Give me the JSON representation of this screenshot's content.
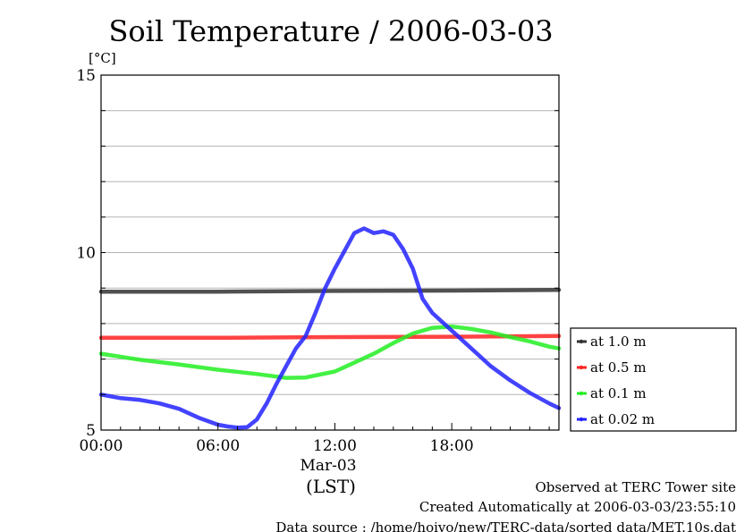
{
  "chart_data": {
    "type": "line",
    "title": "Soil Temperature / 2006-03-03",
    "ylabel": "[°C]",
    "xlabel": "(LST)",
    "x_date_label": "Mar-03",
    "ylim": [
      5,
      15
    ],
    "xlim": [
      0,
      23.5
    ],
    "yticks": [
      "15",
      "10",
      "5"
    ],
    "xticks": [
      {
        "x": 0,
        "label": "00:00"
      },
      {
        "x": 6,
        "label": "06:00"
      },
      {
        "x": 12,
        "label": "12:00"
      },
      {
        "x": 18,
        "label": "18:00"
      }
    ],
    "grid": true,
    "legend_position": "right",
    "series": [
      {
        "name": "at 1.0 m",
        "color": "#333333",
        "x": [
          0,
          6,
          12,
          18,
          23.5
        ],
        "y": [
          8.9,
          8.9,
          8.92,
          8.93,
          8.95
        ]
      },
      {
        "name": "at 0.5 m",
        "color": "#ff2222",
        "x": [
          0,
          6,
          12,
          18,
          23.5
        ],
        "y": [
          7.6,
          7.6,
          7.62,
          7.63,
          7.65
        ]
      },
      {
        "name": "at 0.1 m",
        "color": "#22ee22",
        "x": [
          0,
          2,
          4,
          6,
          8,
          9.5,
          10.5,
          12,
          13,
          14,
          15,
          16,
          17,
          18,
          19,
          20,
          21,
          22,
          23,
          23.5
        ],
        "y": [
          7.15,
          6.98,
          6.85,
          6.7,
          6.58,
          6.47,
          6.48,
          6.65,
          6.9,
          7.15,
          7.45,
          7.72,
          7.88,
          7.92,
          7.85,
          7.75,
          7.62,
          7.5,
          7.35,
          7.3
        ]
      },
      {
        "name": "at 0.02 m",
        "color": "#2222ff",
        "x": [
          0,
          1,
          2,
          3,
          4,
          5,
          6,
          6.5,
          7,
          7.5,
          8,
          8.5,
          9,
          9.5,
          10,
          10.5,
          11,
          11.5,
          12,
          12.5,
          13,
          13.5,
          14,
          14.5,
          15,
          15.5,
          16,
          16.5,
          17,
          17.5,
          18,
          19,
          20,
          21,
          22,
          23,
          23.5
        ],
        "y": [
          6.0,
          5.9,
          5.85,
          5.75,
          5.6,
          5.35,
          5.15,
          5.1,
          5.07,
          5.08,
          5.3,
          5.75,
          6.3,
          6.8,
          7.3,
          7.65,
          8.3,
          9.0,
          9.55,
          10.05,
          10.55,
          10.68,
          10.55,
          10.6,
          10.5,
          10.1,
          9.55,
          8.7,
          8.3,
          8.05,
          7.8,
          7.3,
          6.8,
          6.4,
          6.05,
          5.75,
          5.62
        ]
      }
    ]
  },
  "footer": {
    "line1": "Observed at TERC Tower site",
    "line2": "Created Automatically at 2006-03-03/23:55:10",
    "line3": "Data source : /home/hoivo/new/TERC-data/sorted  data/MET.10s.dat"
  }
}
